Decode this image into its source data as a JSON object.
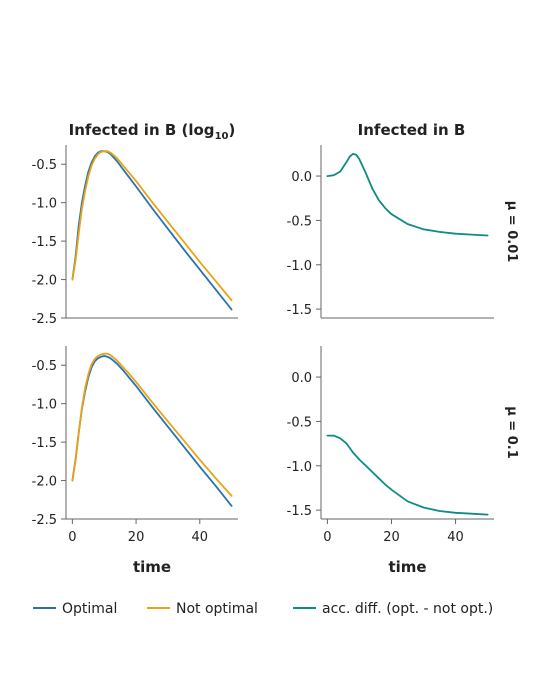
{
  "legend": [
    {
      "label": "Optimal",
      "color": "#2872b0"
    },
    {
      "label": "Not optimal",
      "color": "#e8a317"
    },
    {
      "label": "acc. diff. (opt. - not opt.)",
      "color": "#0f8c82"
    }
  ],
  "chart_data": [
    {
      "type": "line",
      "panel": "top-left",
      "title": "Infected in B (log10)",
      "title_main": "Infected in B (log",
      "title_sub": "10",
      "title_end": ")",
      "xlabel": "",
      "xlim": [
        -2,
        52
      ],
      "ylim": [
        -2.5,
        -0.25
      ],
      "yticks": [
        -2.5,
        -2.0,
        -1.5,
        -1.0,
        -0.5
      ],
      "ytick_labels": [
        "-2.5",
        "-2.0",
        "-1.5",
        "-1.0",
        "-0.5"
      ],
      "xticks": [],
      "series": [
        {
          "name": "Optimal",
          "color": "#2872b0",
          "x": [
            0,
            1,
            2,
            3,
            4,
            5,
            6,
            7,
            8,
            9,
            10,
            11,
            12,
            14,
            16,
            18,
            20,
            25,
            30,
            35,
            40,
            45,
            50
          ],
          "y": [
            -2.0,
            -1.7,
            -1.3,
            -1.0,
            -0.78,
            -0.6,
            -0.48,
            -0.4,
            -0.35,
            -0.33,
            -0.33,
            -0.34,
            -0.37,
            -0.46,
            -0.57,
            -0.68,
            -0.79,
            -1.07,
            -1.34,
            -1.61,
            -1.87,
            -2.13,
            -2.39
          ]
        },
        {
          "name": "Not optimal",
          "color": "#e8a317",
          "x": [
            0,
            1,
            2,
            3,
            4,
            5,
            6,
            7,
            8,
            9,
            10,
            11,
            12,
            14,
            16,
            18,
            20,
            25,
            30,
            35,
            40,
            45,
            50
          ],
          "y": [
            -2.0,
            -1.75,
            -1.4,
            -1.08,
            -0.85,
            -0.66,
            -0.52,
            -0.43,
            -0.37,
            -0.34,
            -0.33,
            -0.33,
            -0.35,
            -0.42,
            -0.52,
            -0.62,
            -0.72,
            -0.99,
            -1.25,
            -1.51,
            -1.77,
            -2.02,
            -2.27
          ]
        }
      ]
    },
    {
      "type": "line",
      "panel": "top-right",
      "title": "Infected in B",
      "xlabel": "",
      "xlim": [
        -2,
        52
      ],
      "ylim": [
        -1.6,
        0.35
      ],
      "yticks": [
        -1.5,
        -1.0,
        -0.5,
        0.0
      ],
      "ytick_labels": [
        "-1.5",
        "-1.0",
        "-0.5",
        "0.0"
      ],
      "xticks": [],
      "row_label": "μ = 0.01",
      "series": [
        {
          "name": "acc. diff. (opt. - not opt.)",
          "color": "#0f8c82",
          "x": [
            0,
            2,
            4,
            6,
            7,
            8,
            9,
            10,
            12,
            14,
            16,
            18,
            20,
            25,
            30,
            35,
            40,
            45,
            50
          ],
          "y": [
            0.0,
            0.01,
            0.05,
            0.16,
            0.22,
            0.25,
            0.24,
            0.19,
            0.03,
            -0.14,
            -0.27,
            -0.36,
            -0.43,
            -0.54,
            -0.6,
            -0.63,
            -0.65,
            -0.66,
            -0.67
          ]
        }
      ]
    },
    {
      "type": "line",
      "panel": "bottom-left",
      "title": "",
      "xlabel": "time",
      "xlim": [
        -2,
        52
      ],
      "ylim": [
        -2.5,
        -0.25
      ],
      "yticks": [
        -2.5,
        -2.0,
        -1.5,
        -1.0,
        -0.5
      ],
      "ytick_labels": [
        "-2.5",
        "-2.0",
        "-1.5",
        "-1.0",
        "-0.5"
      ],
      "xticks": [
        0,
        20,
        40
      ],
      "xtick_labels": [
        "0",
        "20",
        "40"
      ],
      "series": [
        {
          "name": "Optimal",
          "color": "#2872b0",
          "x": [
            0,
            1,
            2,
            3,
            4,
            5,
            6,
            7,
            8,
            9,
            10,
            11,
            12,
            14,
            16,
            18,
            20,
            25,
            30,
            35,
            40,
            45,
            50
          ],
          "y": [
            -2.0,
            -1.72,
            -1.38,
            -1.07,
            -0.84,
            -0.66,
            -0.53,
            -0.45,
            -0.41,
            -0.39,
            -0.38,
            -0.39,
            -0.41,
            -0.48,
            -0.57,
            -0.67,
            -0.77,
            -1.04,
            -1.3,
            -1.56,
            -1.82,
            -2.07,
            -2.33
          ]
        },
        {
          "name": "Not optimal",
          "color": "#e8a317",
          "x": [
            0,
            1,
            2,
            3,
            4,
            5,
            6,
            7,
            8,
            9,
            10,
            11,
            12,
            14,
            16,
            18,
            20,
            25,
            30,
            35,
            40,
            45,
            50
          ],
          "y": [
            -2.0,
            -1.74,
            -1.38,
            -1.05,
            -0.8,
            -0.62,
            -0.49,
            -0.42,
            -0.38,
            -0.36,
            -0.35,
            -0.35,
            -0.37,
            -0.44,
            -0.53,
            -0.62,
            -0.72,
            -0.98,
            -1.23,
            -1.48,
            -1.73,
            -1.97,
            -2.2
          ]
        }
      ]
    },
    {
      "type": "line",
      "panel": "bottom-right",
      "title": "",
      "xlabel": "time",
      "xlim": [
        -2,
        52
      ],
      "ylim": [
        -1.6,
        0.35
      ],
      "yticks": [
        -1.5,
        -1.0,
        -0.5,
        0.0
      ],
      "ytick_labels": [
        "-1.5",
        "-1.0",
        "-0.5",
        "0.0"
      ],
      "xticks": [
        0,
        20,
        40
      ],
      "xtick_labels": [
        "0",
        "20",
        "40"
      ],
      "row_label": "μ = 0.1",
      "series": [
        {
          "name": "acc. diff. (opt. - not opt.)",
          "color": "#0f8c82",
          "x": [
            0,
            2,
            4,
            6,
            8,
            10,
            12,
            14,
            16,
            18,
            20,
            25,
            30,
            35,
            40,
            45,
            50
          ],
          "y": [
            -0.66,
            -0.66,
            -0.69,
            -0.75,
            -0.85,
            -0.93,
            -1.0,
            -1.07,
            -1.14,
            -1.21,
            -1.27,
            -1.4,
            -1.47,
            -1.51,
            -1.53,
            -1.54,
            -1.55
          ]
        }
      ]
    }
  ]
}
